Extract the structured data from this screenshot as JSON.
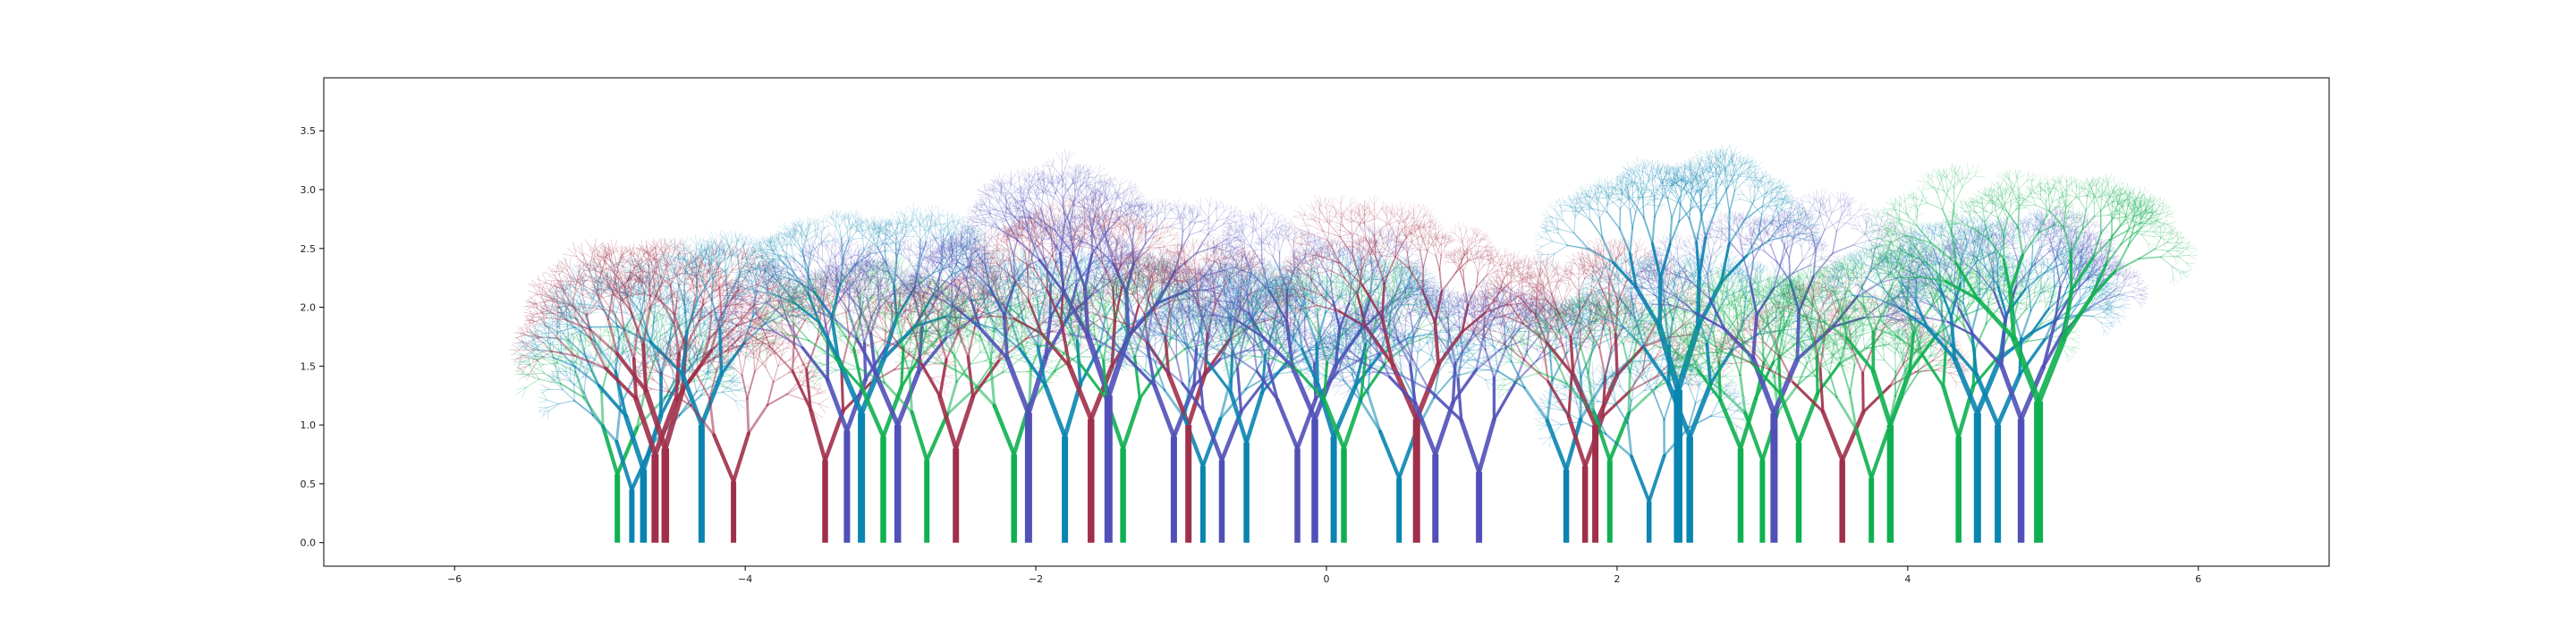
{
  "chart_data": {
    "type": "scatter",
    "title": "",
    "xlabel": "",
    "ylabel": "",
    "xlim": [
      -6.9,
      6.9
    ],
    "ylim": [
      -0.2,
      3.95
    ],
    "grid": false,
    "legend": "none",
    "xticks": [
      "−6",
      "−4",
      "−2",
      "0",
      "2",
      "4",
      "6"
    ],
    "xtick_values": [
      -6,
      -4,
      -2,
      0,
      2,
      4,
      6
    ],
    "yticks": [
      "0.0",
      "0.5",
      "1.0",
      "1.5",
      "2.0",
      "2.5",
      "3.0",
      "3.5"
    ],
    "ytick_values": [
      0,
      0.5,
      1.0,
      1.5,
      2.0,
      2.5,
      3.0,
      3.5
    ],
    "palette": [
      "#0a84b0",
      "#a0304a",
      "#10b050",
      "#5050b8"
    ],
    "trees": [
      {
        "x": -4.88,
        "h": 0.58,
        "c": 2,
        "w": 0.6,
        "d": 5
      },
      {
        "x": -4.78,
        "h": 0.45,
        "c": 0,
        "w": 0.6,
        "d": 5
      },
      {
        "x": -4.7,
        "h": 0.62,
        "c": 0,
        "w": 0.9,
        "d": 6
      },
      {
        "x": -4.62,
        "h": 0.75,
        "c": 1,
        "w": 1.0,
        "d": 6
      },
      {
        "x": -4.55,
        "h": 0.8,
        "c": 1,
        "w": 1.1,
        "d": 6
      },
      {
        "x": -4.3,
        "h": 1.0,
        "c": 0,
        "w": 0.8,
        "d": 6
      },
      {
        "x": -4.08,
        "h": 0.52,
        "c": 1,
        "w": 0.6,
        "d": 5
      },
      {
        "x": -3.45,
        "h": 0.7,
        "c": 1,
        "w": 0.7,
        "d": 6
      },
      {
        "x": -3.3,
        "h": 0.95,
        "c": 3,
        "w": 0.8,
        "d": 6
      },
      {
        "x": -3.2,
        "h": 1.1,
        "c": 0,
        "w": 1.0,
        "d": 7
      },
      {
        "x": -3.05,
        "h": 0.9,
        "c": 2,
        "w": 0.7,
        "d": 6
      },
      {
        "x": -2.95,
        "h": 1.0,
        "c": 3,
        "w": 0.9,
        "d": 6
      },
      {
        "x": -2.75,
        "h": 0.7,
        "c": 2,
        "w": 0.6,
        "d": 5
      },
      {
        "x": -2.55,
        "h": 0.8,
        "c": 1,
        "w": 0.8,
        "d": 6
      },
      {
        "x": -2.15,
        "h": 0.75,
        "c": 2,
        "w": 0.7,
        "d": 5
      },
      {
        "x": -2.05,
        "h": 1.1,
        "c": 3,
        "w": 1.0,
        "d": 7
      },
      {
        "x": -1.8,
        "h": 0.9,
        "c": 0,
        "w": 0.8,
        "d": 6
      },
      {
        "x": -1.62,
        "h": 1.05,
        "c": 1,
        "w": 0.9,
        "d": 7
      },
      {
        "x": -1.5,
        "h": 1.25,
        "c": 3,
        "w": 1.2,
        "d": 7
      },
      {
        "x": -1.4,
        "h": 0.8,
        "c": 2,
        "w": 0.7,
        "d": 6
      },
      {
        "x": -1.05,
        "h": 0.9,
        "c": 3,
        "w": 0.8,
        "d": 6
      },
      {
        "x": -0.95,
        "h": 1.0,
        "c": 1,
        "w": 0.8,
        "d": 6
      },
      {
        "x": -0.85,
        "h": 0.65,
        "c": 0,
        "w": 0.6,
        "d": 5
      },
      {
        "x": -0.72,
        "h": 0.7,
        "c": 3,
        "w": 0.7,
        "d": 6
      },
      {
        "x": -0.55,
        "h": 0.85,
        "c": 0,
        "w": 0.7,
        "d": 6
      },
      {
        "x": -0.2,
        "h": 0.8,
        "c": 3,
        "w": 0.7,
        "d": 6
      },
      {
        "x": -0.08,
        "h": 1.05,
        "c": 3,
        "w": 0.9,
        "d": 7
      },
      {
        "x": 0.05,
        "h": 0.9,
        "c": 0,
        "w": 0.8,
        "d": 6
      },
      {
        "x": 0.12,
        "h": 0.8,
        "c": 2,
        "w": 0.7,
        "d": 6
      },
      {
        "x": 0.5,
        "h": 0.55,
        "c": 0,
        "w": 0.6,
        "d": 5
      },
      {
        "x": 0.62,
        "h": 1.05,
        "c": 1,
        "w": 1.0,
        "d": 7
      },
      {
        "x": 0.75,
        "h": 0.75,
        "c": 3,
        "w": 0.8,
        "d": 6
      },
      {
        "x": 1.05,
        "h": 0.6,
        "c": 3,
        "w": 0.8,
        "d": 6
      },
      {
        "x": 1.65,
        "h": 0.62,
        "c": 0,
        "w": 0.7,
        "d": 5
      },
      {
        "x": 1.78,
        "h": 0.65,
        "c": 1,
        "w": 0.7,
        "d": 6
      },
      {
        "x": 1.85,
        "h": 1.0,
        "c": 1,
        "w": 0.8,
        "d": 6
      },
      {
        "x": 1.95,
        "h": 0.7,
        "c": 2,
        "w": 0.6,
        "d": 5
      },
      {
        "x": 2.22,
        "h": 0.35,
        "c": 0,
        "w": 0.5,
        "d": 5
      },
      {
        "x": 2.42,
        "h": 1.3,
        "c": 0,
        "w": 1.3,
        "d": 7
      },
      {
        "x": 2.5,
        "h": 0.9,
        "c": 0,
        "w": 0.9,
        "d": 6
      },
      {
        "x": 2.85,
        "h": 0.8,
        "c": 2,
        "w": 0.7,
        "d": 6
      },
      {
        "x": 3.0,
        "h": 0.7,
        "c": 2,
        "w": 0.6,
        "d": 5
      },
      {
        "x": 3.08,
        "h": 1.1,
        "c": 3,
        "w": 1.0,
        "d": 7
      },
      {
        "x": 3.25,
        "h": 0.85,
        "c": 2,
        "w": 0.7,
        "d": 6
      },
      {
        "x": 3.55,
        "h": 0.7,
        "c": 1,
        "w": 0.7,
        "d": 6
      },
      {
        "x": 3.75,
        "h": 0.55,
        "c": 2,
        "w": 0.6,
        "d": 5
      },
      {
        "x": 3.88,
        "h": 1.0,
        "c": 2,
        "w": 0.9,
        "d": 6
      },
      {
        "x": 4.35,
        "h": 0.9,
        "c": 2,
        "w": 0.7,
        "d": 6
      },
      {
        "x": 4.48,
        "h": 1.1,
        "c": 0,
        "w": 1.0,
        "d": 7
      },
      {
        "x": 4.62,
        "h": 1.0,
        "c": 0,
        "w": 0.8,
        "d": 6
      },
      {
        "x": 4.78,
        "h": 1.05,
        "c": 3,
        "w": 0.9,
        "d": 7
      },
      {
        "x": 4.9,
        "h": 1.2,
        "c": 2,
        "w": 1.4,
        "d": 7
      }
    ]
  }
}
